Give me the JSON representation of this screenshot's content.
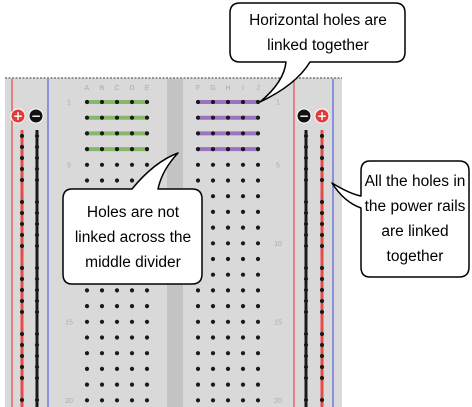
{
  "breadboard": {
    "column_letters_left": [
      "A",
      "B",
      "C",
      "D",
      "E"
    ],
    "column_letters_right": [
      "F",
      "G",
      "H",
      "I",
      "J"
    ],
    "row_numbers": [
      "1",
      "5",
      "10",
      "15",
      "20"
    ],
    "rail_signs": {
      "minus": "−",
      "plus": "+"
    },
    "colors": {
      "board": "#d9d9d9",
      "divider": "#c4c4c4",
      "hole": "#1a1a1a",
      "rail_red": "#e84a4a",
      "rail_blue": "#5560e0",
      "link_green": "#86b86a",
      "link_purple": "#9a74bf",
      "plus_badge": "#e23b3b",
      "minus_badge": "#111111"
    }
  },
  "callouts": {
    "top": "Horizontal holes are linked together",
    "middle": "Holes are not linked across the middle divider",
    "right": "All the holes in the power rails are linked together"
  }
}
